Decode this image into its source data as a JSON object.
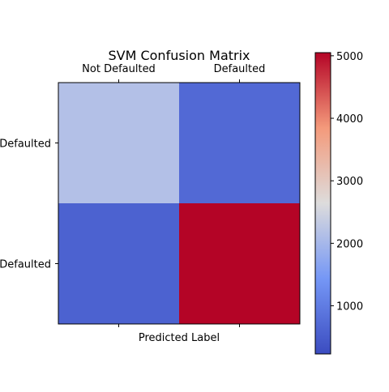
{
  "chart_data": {
    "type": "heatmap",
    "title": "SVM Confusion Matrix",
    "xlabel": "Predicted Label",
    "ylabel": "",
    "x_categories": [
      "Not Defaulted",
      "Defaulted"
    ],
    "y_categories": [
      "Not Defaulted",
      "Defaulted"
    ],
    "values": [
      [
        2150,
        700
      ],
      [
        580,
        5050
      ]
    ],
    "colormap": "coolwarm",
    "colorbar": {
      "range": [
        230,
        5050
      ],
      "ticks": [
        1000,
        2000,
        3000,
        4000,
        5000
      ],
      "tick_labels": [
        "1000",
        "2000",
        "3000",
        "4000",
        "5000"
      ]
    },
    "grid": false
  }
}
